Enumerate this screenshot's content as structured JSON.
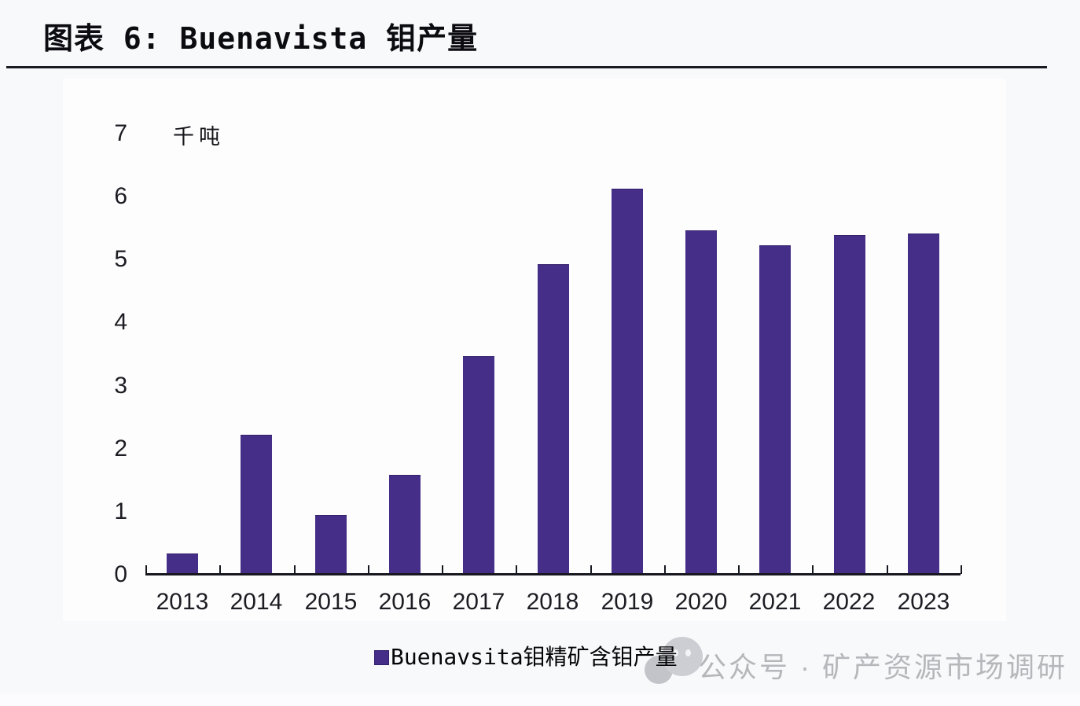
{
  "page": {
    "title": "图表 6: Buenavista 钼产量",
    "watermark": {
      "icon": "wechat-official-account-icon",
      "text": "公众号 · 矿产资源市场调研",
      "color": "#b6b7bb"
    }
  },
  "chart_data": {
    "type": "bar",
    "title": "图表 6: Buenavista 钼产量",
    "unit_label": "千吨",
    "categories": [
      "2013",
      "2014",
      "2015",
      "2016",
      "2017",
      "2018",
      "2019",
      "2020",
      "2021",
      "2022",
      "2023"
    ],
    "series": [
      {
        "name": "Buenavsita钼精矿含钼产量",
        "values": [
          0.34,
          2.22,
          0.95,
          1.58,
          3.47,
          4.93,
          6.13,
          5.47,
          5.23,
          5.39,
          5.42
        ]
      }
    ],
    "ylim": [
      0,
      7
    ],
    "yticks": [
      0,
      1,
      2,
      3,
      4,
      5,
      6,
      7
    ],
    "grid": false,
    "legend_position": "bottom",
    "bar_color": "#452e87",
    "axis_color": "#17171f"
  }
}
